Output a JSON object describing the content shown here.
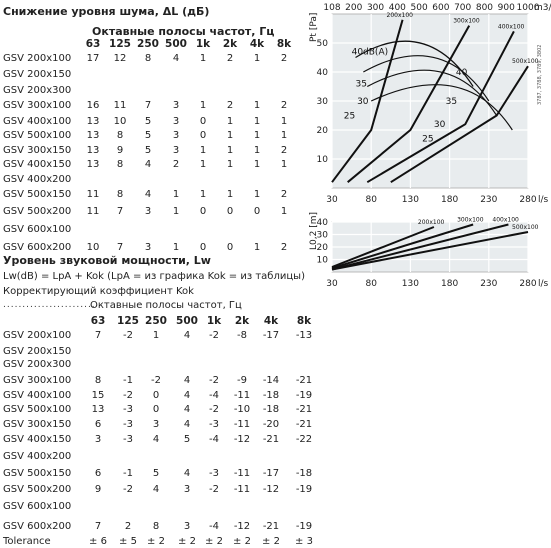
{
  "noise_reduction": {
    "title": "Снижение уровня шума, ΔL (дБ)",
    "subtitle": "Октавные полосы частот, Гц",
    "bands": [
      "63",
      "125",
      "250",
      "500",
      "1k",
      "2k",
      "4k",
      "8k"
    ],
    "rows": [
      {
        "name": "GSV 200x100",
        "values": [
          "17",
          "12",
          "8",
          "4",
          "1",
          "2",
          "1",
          "2"
        ]
      },
      {
        "name": "GSV 200x150",
        "values": [
          "",
          "",
          "",
          "",
          "",
          "",
          "",
          ""
        ]
      },
      {
        "name": "GSV 200x300",
        "values": [
          "",
          "",
          "",
          "",
          "",
          "",
          "",
          ""
        ]
      },
      {
        "name": "GSV 300x100",
        "values": [
          "16",
          "11",
          "7",
          "3",
          "1",
          "2",
          "1",
          "2"
        ]
      },
      {
        "name": "GSV 400x100",
        "values": [
          "13",
          "10",
          "5",
          "3",
          "0",
          "1",
          "1",
          "1"
        ]
      },
      {
        "name": "GSV 500x100",
        "values": [
          "13",
          "8",
          "5",
          "3",
          "0",
          "1",
          "1",
          "1"
        ]
      },
      {
        "name": "GSV 300x150",
        "values": [
          "13",
          "9",
          "5",
          "3",
          "1",
          "1",
          "1",
          "2"
        ]
      },
      {
        "name": "GSV 400x150",
        "values": [
          "13",
          "8",
          "4",
          "2",
          "1",
          "1",
          "1",
          "1"
        ]
      },
      {
        "name": "GSV 400x200",
        "values": [
          "",
          "",
          "",
          "",
          "",
          "",
          "",
          ""
        ]
      },
      {
        "name": "GSV 500x150",
        "values": [
          "11",
          "8",
          "4",
          "1",
          "1",
          "1",
          "1",
          "2"
        ]
      },
      {
        "name": "GSV 500x200",
        "values": [
          "11",
          "7",
          "3",
          "1",
          "0",
          "0",
          "0",
          "1"
        ]
      },
      {
        "name": "GSV 600x100",
        "values": [
          "",
          "",
          "",
          "",
          "",
          "",
          "",
          ""
        ]
      },
      {
        "name": "GSV 600x200",
        "values": [
          "10",
          "7",
          "3",
          "1",
          "0",
          "0",
          "1",
          "2"
        ]
      }
    ]
  },
  "power": {
    "title": "Уровень звуковой мощности, Lw",
    "formula": "Lw(dB) = LpA + Kok (LpA = из графика Kok = из таблицы)",
    "corr": "Корректирующий коэффициент Kok",
    "dots": "........................",
    "subtitle": "Октавные полосы частот, Гц",
    "bands": [
      "63",
      "125",
      "250",
      "500",
      "1k",
      "2k",
      "4k",
      "8k"
    ],
    "rows": [
      {
        "name": "GSV 200x100",
        "values": [
          "7",
          "-2",
          "1",
          "4",
          "-2",
          "-8",
          "-17",
          "-13"
        ]
      },
      {
        "name": "GSV 200x150",
        "values": [
          "",
          "",
          "",
          "",
          "",
          "",
          "",
          ""
        ]
      },
      {
        "name": "GSV 200x300",
        "values": [
          "",
          "",
          "",
          "",
          "",
          "",
          "",
          ""
        ]
      },
      {
        "name": "GSV 300x100",
        "values": [
          "8",
          "-1",
          "-2",
          "4",
          "-2",
          "-9",
          "-14",
          "-21"
        ]
      },
      {
        "name": "GSV 400x100",
        "values": [
          "15",
          "-2",
          "0",
          "4",
          "-4",
          "-11",
          "-18",
          "-19"
        ]
      },
      {
        "name": "GSV 500x100",
        "values": [
          "13",
          "-3",
          "0",
          "4",
          "-2",
          "-10",
          "-18",
          "-21"
        ]
      },
      {
        "name": "GSV 300x150",
        "values": [
          "6",
          "-3",
          "3",
          "4",
          "-3",
          "-11",
          "-20",
          "-21"
        ]
      },
      {
        "name": "GSV 400x150",
        "values": [
          "3",
          "-3",
          "4",
          "5",
          "-4",
          "-12",
          "-21",
          "-22"
        ]
      },
      {
        "name": "GSV 400x200",
        "values": [
          "",
          "",
          "",
          "",
          "",
          "",
          "",
          ""
        ]
      },
      {
        "name": "GSV 500x150",
        "values": [
          "6",
          "-1",
          "5",
          "4",
          "-3",
          "-11",
          "-17",
          "-18"
        ]
      },
      {
        "name": "GSV 500x200",
        "values": [
          "9",
          "-2",
          "4",
          "3",
          "-2",
          "-11",
          "-12",
          "-19"
        ]
      },
      {
        "name": "GSV 600x100",
        "values": [
          "",
          "",
          "",
          "",
          "",
          "",
          "",
          ""
        ]
      },
      {
        "name": "GSV 600x200",
        "values": [
          "7",
          "2",
          "8",
          "3",
          "-4",
          "-12",
          "-21",
          "-19"
        ]
      }
    ],
    "tolerance": {
      "name": "Tolerance",
      "values": [
        "± 6",
        "± 5",
        "± 2",
        "± 2",
        "± 2",
        "± 2",
        "± 2",
        "± 3"
      ]
    }
  },
  "chart_data": [
    {
      "type": "line",
      "y_unit": "Pt [Pa]",
      "x_unit": "l/s",
      "top_unit": "m3/h",
      "x_ticks": [
        "30",
        "80",
        "130",
        "180",
        "230",
        "280"
      ],
      "top_ticks": [
        "108",
        "200",
        "300",
        "400",
        "500",
        "600",
        "700",
        "800",
        "900",
        "1000"
      ],
      "y_ticks": [
        "10",
        "20",
        "30",
        "40",
        "50"
      ],
      "xlim": [
        30,
        280
      ],
      "ylim": [
        0,
        60
      ],
      "grid": true,
      "code": "3787, 3788, 3789, 3802",
      "series": [
        {
          "name": "200x100",
          "x": [
            30,
            80,
            120
          ],
          "y": [
            2,
            20,
            58
          ]
        },
        {
          "name": "300x100",
          "x": [
            50,
            130,
            205
          ],
          "y": [
            2,
            20,
            56
          ]
        },
        {
          "name": "400x100",
          "x": [
            75,
            200,
            262
          ],
          "y": [
            2,
            22,
            54
          ]
        },
        {
          "name": "500x100",
          "x": [
            105,
            240,
            280
          ],
          "y": [
            2,
            25,
            42
          ]
        }
      ],
      "sound_labels": [
        "40dB(A)",
        "35",
        "30",
        "25",
        "40",
        "35",
        "30",
        "25"
      ]
    },
    {
      "type": "line",
      "y_unit": "L0,2 [m]",
      "x_unit": "l/s",
      "x_ticks": [
        "30",
        "80",
        "130",
        "180",
        "230",
        "280"
      ],
      "y_ticks": [
        "10",
        "20",
        "30",
        "40"
      ],
      "xlim": [
        30,
        280
      ],
      "ylim": [
        0,
        40
      ],
      "grid": true,
      "series": [
        {
          "name": "200x100",
          "x": [
            30,
            160
          ],
          "y": [
            4,
            36
          ]
        },
        {
          "name": "300x100",
          "x": [
            30,
            210
          ],
          "y": [
            3,
            38
          ]
        },
        {
          "name": "400x100",
          "x": [
            30,
            255
          ],
          "y": [
            2,
            38
          ]
        },
        {
          "name": "500x100",
          "x": [
            30,
            280
          ],
          "y": [
            2,
            32
          ]
        }
      ]
    }
  ]
}
